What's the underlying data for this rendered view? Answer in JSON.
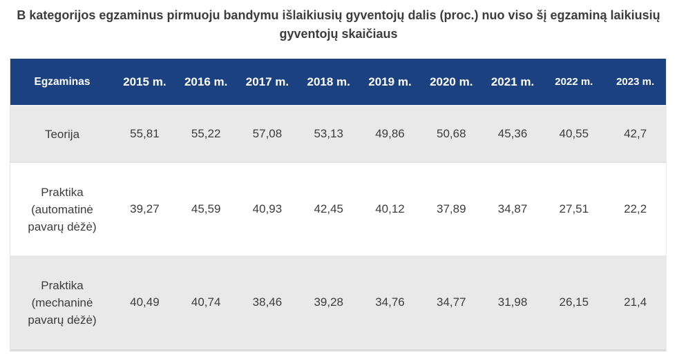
{
  "title": "B kategorijos egzaminus pirmuoju bandymu išlaikiusių gyventojų dalis (proc.) nuo viso šį egzaminą laikiusių gyventojų skaičiaus",
  "colors": {
    "header_bg": "#1b4180",
    "header_text": "#ffffff",
    "alt_row_bg": "#e9e9e9",
    "body_text": "#3c3c3c"
  },
  "table": {
    "columns": [
      "Egzaminas",
      "2015 m.",
      "2016 m.",
      "2017 m.",
      "2018 m.",
      "2019 m.",
      "2020 m.",
      "2021 m.",
      "2022 m.",
      "2023 m."
    ],
    "rows": [
      {
        "label": "Teorija",
        "values": [
          "55,81",
          "55,22",
          "57,08",
          "53,13",
          "49,86",
          "50,68",
          "45,36",
          "40,55",
          "42,7"
        ]
      },
      {
        "label": "Praktika\n(automatinė\npavarų dėžė)",
        "values": [
          "39,27",
          "45,59",
          "40,93",
          "42,45",
          "40,12",
          "37,89",
          "34,87",
          "27,51",
          "22,2"
        ]
      },
      {
        "label": "Praktika\n(mechaninė\npavarų dėžė)",
        "values": [
          "40,49",
          "40,74",
          "38,46",
          "39,28",
          "34,76",
          "34,77",
          "31,98",
          "26,15",
          "21,4"
        ]
      }
    ]
  },
  "chart_data": {
    "type": "table",
    "title": "B kategorijos egzaminus pirmuoju bandymu išlaikiusių gyventojų dalis (proc.) nuo viso šį egzaminą laikiusių gyventojų skaičiaus",
    "unit": "proc.",
    "categories": [
      "2015",
      "2016",
      "2017",
      "2018",
      "2019",
      "2020",
      "2021",
      "2022",
      "2023"
    ],
    "series": [
      {
        "name": "Teorija",
        "values": [
          55.81,
          55.22,
          57.08,
          53.13,
          49.86,
          50.68,
          45.36,
          40.55,
          42.7
        ]
      },
      {
        "name": "Praktika (automatinė pavarų dėžė)",
        "values": [
          39.27,
          45.59,
          40.93,
          42.45,
          40.12,
          37.89,
          34.87,
          27.51,
          22.2
        ]
      },
      {
        "name": "Praktika (mechaninė pavarų dėžė)",
        "values": [
          40.49,
          40.74,
          38.46,
          39.28,
          34.76,
          34.77,
          31.98,
          26.15,
          21.4
        ]
      }
    ]
  }
}
